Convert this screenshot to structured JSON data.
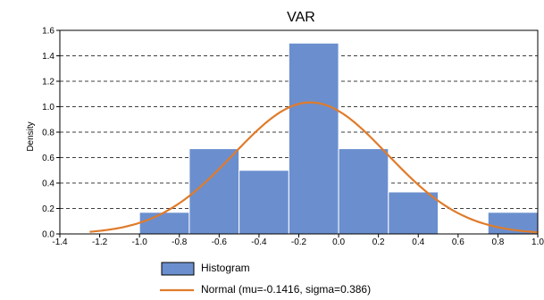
{
  "chart_data": {
    "type": "bar",
    "title": "VAR",
    "xlabel": "",
    "ylabel": "Density",
    "xlim": [
      -1.4,
      1.0
    ],
    "ylim": [
      0,
      1.6
    ],
    "xticks": [
      "-1.4",
      "-1.2",
      "-1.0",
      "-0.8",
      "-0.6",
      "-0.4",
      "-0.2",
      "0.0",
      "0.2",
      "0.4",
      "0.6",
      "0.8",
      "1.0"
    ],
    "yticks": [
      "0.0",
      "0.2",
      "0.4",
      "0.6",
      "0.8",
      "1.0",
      "1.2",
      "1.4",
      "1.6"
    ],
    "grid": true,
    "legend_position": "bottom",
    "bins": [
      {
        "x0": -1.0,
        "x1": -0.75,
        "value": 0.17
      },
      {
        "x0": -0.75,
        "x1": -0.5,
        "value": 0.67
      },
      {
        "x0": -0.5,
        "x1": -0.25,
        "value": 0.5
      },
      {
        "x0": -0.25,
        "x1": 0.0,
        "value": 1.5
      },
      {
        "x0": 0.0,
        "x1": 0.25,
        "value": 0.67
      },
      {
        "x0": 0.25,
        "x1": 0.5,
        "value": 0.33
      },
      {
        "x0": 0.75,
        "x1": 1.0,
        "value": 0.17
      }
    ],
    "series": [
      {
        "name": "Histogram",
        "type": "histogram",
        "color": "#6b8fce"
      },
      {
        "name": "Normal (mu=-0.1416, sigma=0.386)",
        "type": "line",
        "mu": -0.1416,
        "sigma": 0.386,
        "x_range": [
          -1.25,
          1.0
        ],
        "color": "#e07b2a"
      }
    ]
  }
}
